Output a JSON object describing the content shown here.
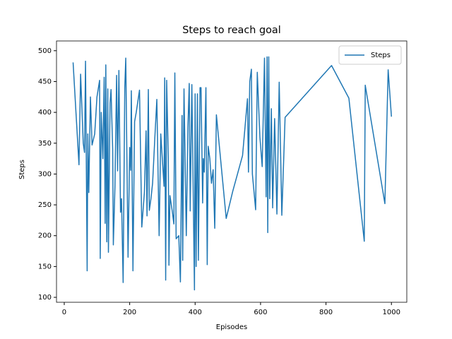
{
  "chart_data": {
    "type": "line",
    "title": "Steps to reach goal",
    "xlabel": "Episodes",
    "ylabel": "Steps",
    "x": [
      27,
      45,
      50,
      58,
      62,
      65,
      70,
      72,
      75,
      80,
      85,
      93,
      100,
      108,
      110,
      113,
      118,
      122,
      125,
      127,
      130,
      133,
      135,
      138,
      140,
      143,
      148,
      150,
      155,
      160,
      163,
      167,
      172,
      175,
      180,
      185,
      188,
      195,
      200,
      203,
      205,
      210,
      215,
      220,
      230,
      237,
      245,
      250,
      253,
      257,
      260,
      265,
      270,
      277,
      283,
      290,
      295,
      305,
      307,
      310,
      313,
      318,
      320,
      323,
      330,
      335,
      338,
      342,
      350,
      355,
      360,
      362,
      366,
      370,
      373,
      378,
      382,
      385,
      390,
      395,
      398,
      400,
      403,
      407,
      410,
      415,
      418,
      423,
      425,
      428,
      433,
      437,
      440,
      445,
      450,
      455,
      460,
      465,
      495,
      515,
      545,
      560,
      563,
      567,
      572,
      575,
      585,
      590,
      598,
      605,
      612,
      617,
      620,
      622,
      625,
      628,
      633,
      637,
      643,
      650,
      657,
      665,
      675,
      817,
      870,
      917,
      920,
      980,
      990,
      1000
    ],
    "series": [
      {
        "name": "Steps",
        "color": "#1f77b4",
        "values": [
          481,
          315,
          462,
          350,
          335,
          483,
          143,
          365,
          270,
          425,
          347,
          365,
          425,
          452,
          163,
          400,
          325,
          457,
          220,
          477,
          190,
          438,
          173,
          320,
          415,
          437,
          340,
          185,
          280,
          460,
          305,
          468,
          238,
          260,
          124,
          440,
          488,
          165,
          343,
          306,
          435,
          143,
          385,
          400,
          436,
          214,
          270,
          370,
          232,
          437,
          241,
          260,
          285,
          360,
          421,
          200,
          365,
          280,
          456,
          128,
          452,
          325,
          152,
          265,
          240,
          219,
          464,
          195,
          200,
          125,
          395,
          160,
          438,
          300,
          200,
          375,
          447,
          240,
          445,
          235,
          112,
          430,
          150,
          430,
          160,
          440,
          440,
          253,
          325,
          303,
          440,
          153,
          345,
          325,
          285,
          307,
          212,
          396,
          228,
          272,
          330,
          422,
          303,
          450,
          470,
          300,
          242,
          465,
          360,
          312,
          488,
          263,
          490,
          205,
          490,
          260,
          406,
          245,
          390,
          235,
          449,
          233,
          392,
          476,
          423,
          191,
          444,
          252,
          469,
          393
        ]
      }
    ],
    "xlim": [
      -23.7,
      1047
    ],
    "ylim": [
      92,
      515.8
    ],
    "xticks": [
      0,
      200,
      400,
      600,
      800,
      1000
    ],
    "yticks": [
      100,
      150,
      200,
      250,
      300,
      350,
      400,
      450,
      500
    ],
    "legend": "upper right"
  }
}
